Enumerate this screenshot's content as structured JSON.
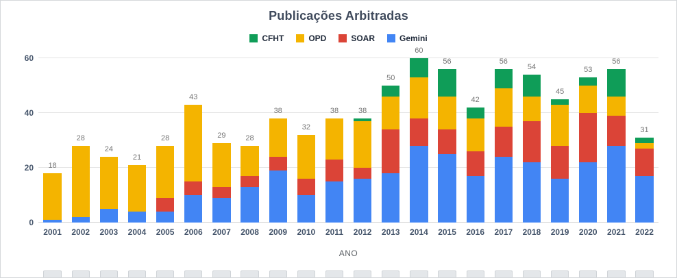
{
  "chart_data": {
    "type": "bar",
    "stacked": true,
    "title": "Publicações Arbitradas",
    "xlabel": "ANO",
    "ylabel": "",
    "ylim": [
      0,
      60
    ],
    "yticks": [
      0,
      20,
      40,
      60
    ],
    "grid": true,
    "legend_position": "top",
    "legend": [
      "CFHT",
      "OPD",
      "SOAR",
      "Gemini"
    ],
    "categories": [
      "2001",
      "2002",
      "2003",
      "2004",
      "2005",
      "2006",
      "2007",
      "2008",
      "2009",
      "2010",
      "2011",
      "2012",
      "2013",
      "2014",
      "2015",
      "2016",
      "2017",
      "2018",
      "2019",
      "2020",
      "2021",
      "2022"
    ],
    "totals": [
      18,
      28,
      24,
      21,
      28,
      43,
      29,
      28,
      38,
      32,
      38,
      38,
      50,
      60,
      56,
      42,
      56,
      54,
      45,
      53,
      56,
      31
    ],
    "series": [
      {
        "name": "Gemini",
        "color": "#4285F4",
        "values": [
          1,
          2,
          5,
          4,
          4,
          10,
          9,
          13,
          19,
          10,
          15,
          16,
          18,
          28,
          25,
          17,
          24,
          22,
          16,
          22,
          28,
          17
        ]
      },
      {
        "name": "SOAR",
        "color": "#DB4437",
        "values": [
          0,
          0,
          0,
          0,
          5,
          5,
          4,
          4,
          5,
          6,
          8,
          4,
          16,
          10,
          9,
          9,
          11,
          15,
          12,
          18,
          11,
          10
        ]
      },
      {
        "name": "OPD",
        "color": "#F4B400",
        "values": [
          17,
          26,
          19,
          17,
          19,
          28,
          16,
          11,
          14,
          16,
          15,
          17,
          12,
          15,
          12,
          12,
          14,
          9,
          15,
          10,
          7,
          2
        ]
      },
      {
        "name": "CFHT",
        "color": "#0F9D58",
        "values": [
          0,
          0,
          0,
          0,
          0,
          0,
          0,
          0,
          0,
          0,
          0,
          1,
          4,
          7,
          10,
          4,
          7,
          8,
          2,
          3,
          10,
          2
        ]
      }
    ],
    "colors": {
      "title_text": "#3f4a5c",
      "axis_label_text": "#44546a",
      "total_label_text": "#757575",
      "gridline": "#e4e4e4"
    }
  }
}
